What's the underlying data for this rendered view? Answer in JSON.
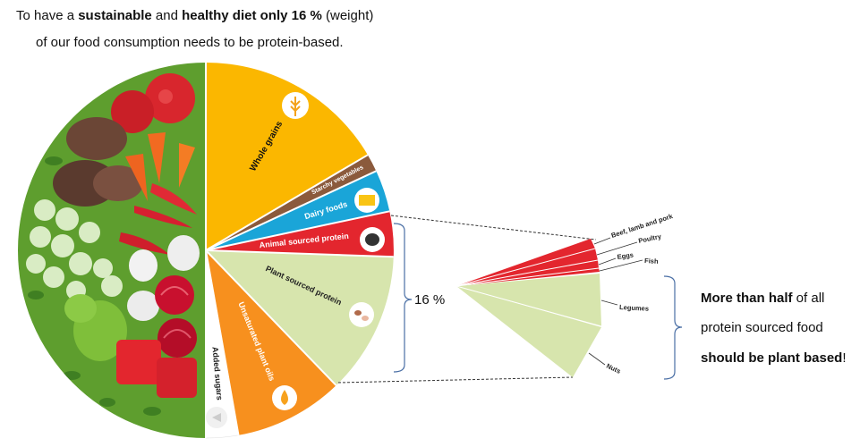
{
  "header": {
    "line1": {
      "pre": "To have a ",
      "b1": "sustainable",
      "mid": " and ",
      "b2": "healthy diet only 16 %",
      "post": " (weight)"
    },
    "line2": "of our food consumption needs to be protein-based."
  },
  "plate": {
    "segments": [
      {
        "label": "Whole grains",
        "color": "#fbb700"
      },
      {
        "label": "Starchy vegetables",
        "color": "#8b5a3c"
      },
      {
        "label": "Dairy foods",
        "color": "#1aa5d8"
      },
      {
        "label": "Animal sourced protein",
        "color": "#e3262e"
      },
      {
        "label": "Plant sourced protein",
        "color": "#d7e5ad"
      },
      {
        "label": "Unsaturated plant oils",
        "color": "#f7901e"
      },
      {
        "label": "Added sugars",
        "color": "#ffffff"
      }
    ],
    "vegetable_half_color": "#5e9e2e"
  },
  "brace_label": "16 %",
  "breakdown": {
    "items": [
      "Beef, lamb and pork",
      "Poultry",
      "Eggs",
      "Fish",
      "Legumes",
      "Nuts"
    ],
    "animal_color": "#e3262e",
    "plant_color": "#d7e5ad"
  },
  "note": {
    "l1_b": "More than half",
    "l1_rest": " of all",
    "l2": "protein sourced food",
    "l3_b": "should be plant based",
    "l3_rest": "!"
  }
}
